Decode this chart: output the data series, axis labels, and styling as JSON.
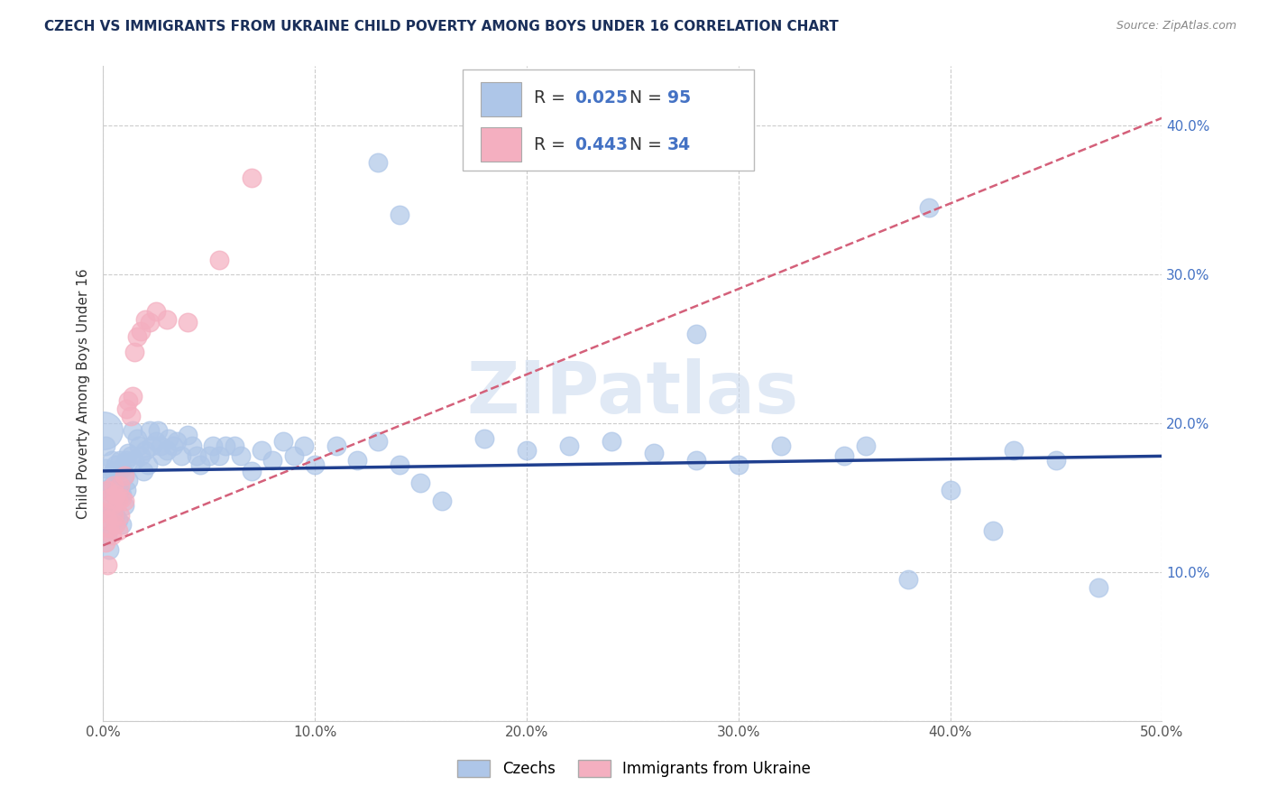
{
  "title": "CZECH VS IMMIGRANTS FROM UKRAINE CHILD POVERTY AMONG BOYS UNDER 16 CORRELATION CHART",
  "source": "Source: ZipAtlas.com",
  "ylabel": "Child Poverty Among Boys Under 16",
  "xlim": [
    0,
    0.5
  ],
  "ylim": [
    0,
    0.44
  ],
  "xtick_vals": [
    0.0,
    0.1,
    0.2,
    0.3,
    0.4,
    0.5
  ],
  "ytick_vals": [
    0.0,
    0.1,
    0.2,
    0.3,
    0.4
  ],
  "xtick_labels": [
    "0.0%",
    "10.0%",
    "20.0%",
    "30.0%",
    "40.0%",
    "50.0%"
  ],
  "ytick_labels": [
    "",
    "10.0%",
    "20.0%",
    "30.0%",
    "40.0%"
  ],
  "watermark": "ZIPatlas",
  "legend_czech": "Czechs",
  "legend_ukraine": "Immigrants from Ukraine",
  "R_czech": "0.025",
  "N_czech": "95",
  "R_ukraine": "0.443",
  "N_ukraine": "34",
  "czech_color": "#aec6e8",
  "ukraine_color": "#f4afc0",
  "czech_line_color": "#1f3f8f",
  "ukraine_line_color": "#d4607a",
  "background_color": "#ffffff",
  "czechs_x": [
    0.001,
    0.001,
    0.002,
    0.002,
    0.002,
    0.003,
    0.003,
    0.003,
    0.003,
    0.004,
    0.004,
    0.004,
    0.005,
    0.005,
    0.005,
    0.006,
    0.006,
    0.006,
    0.007,
    0.007,
    0.007,
    0.008,
    0.008,
    0.009,
    0.009,
    0.009,
    0.01,
    0.01,
    0.011,
    0.011,
    0.012,
    0.012,
    0.013,
    0.014,
    0.015,
    0.016,
    0.017,
    0.018,
    0.019,
    0.02,
    0.021,
    0.022,
    0.023,
    0.025,
    0.026,
    0.027,
    0.028,
    0.03,
    0.031,
    0.033,
    0.035,
    0.037,
    0.04,
    0.042,
    0.044,
    0.046,
    0.05,
    0.052,
    0.055,
    0.058,
    0.062,
    0.065,
    0.07,
    0.075,
    0.08,
    0.085,
    0.09,
    0.095,
    0.1,
    0.11,
    0.12,
    0.13,
    0.14,
    0.15,
    0.16,
    0.18,
    0.2,
    0.22,
    0.24,
    0.26,
    0.28,
    0.3,
    0.32,
    0.35,
    0.38,
    0.4,
    0.42,
    0.43,
    0.45,
    0.47,
    0.13,
    0.14,
    0.28,
    0.39,
    0.36
  ],
  "czechs_y": [
    0.185,
    0.17,
    0.155,
    0.14,
    0.125,
    0.165,
    0.148,
    0.13,
    0.115,
    0.175,
    0.158,
    0.14,
    0.168,
    0.152,
    0.135,
    0.172,
    0.155,
    0.138,
    0.168,
    0.153,
    0.135,
    0.175,
    0.155,
    0.17,
    0.152,
    0.132,
    0.165,
    0.145,
    0.175,
    0.155,
    0.18,
    0.162,
    0.178,
    0.195,
    0.175,
    0.19,
    0.185,
    0.178,
    0.168,
    0.182,
    0.172,
    0.195,
    0.185,
    0.188,
    0.195,
    0.185,
    0.178,
    0.182,
    0.19,
    0.185,
    0.188,
    0.178,
    0.192,
    0.185,
    0.178,
    0.172,
    0.178,
    0.185,
    0.178,
    0.185,
    0.185,
    0.178,
    0.168,
    0.182,
    0.175,
    0.188,
    0.178,
    0.185,
    0.172,
    0.185,
    0.175,
    0.188,
    0.172,
    0.16,
    0.148,
    0.19,
    0.182,
    0.185,
    0.188,
    0.18,
    0.175,
    0.172,
    0.185,
    0.178,
    0.095,
    0.155,
    0.128,
    0.182,
    0.175,
    0.09,
    0.375,
    0.34,
    0.26,
    0.345,
    0.185
  ],
  "ukraine_x": [
    0.001,
    0.001,
    0.002,
    0.002,
    0.002,
    0.003,
    0.003,
    0.004,
    0.004,
    0.005,
    0.005,
    0.006,
    0.006,
    0.007,
    0.007,
    0.008,
    0.008,
    0.009,
    0.01,
    0.01,
    0.011,
    0.012,
    0.013,
    0.014,
    0.015,
    0.016,
    0.018,
    0.02,
    0.022,
    0.025,
    0.03,
    0.04,
    0.055,
    0.07
  ],
  "ukraine_y": [
    0.14,
    0.12,
    0.155,
    0.135,
    0.105,
    0.15,
    0.13,
    0.145,
    0.125,
    0.158,
    0.138,
    0.152,
    0.132,
    0.148,
    0.128,
    0.158,
    0.138,
    0.15,
    0.165,
    0.148,
    0.21,
    0.215,
    0.205,
    0.218,
    0.248,
    0.258,
    0.262,
    0.27,
    0.268,
    0.275,
    0.27,
    0.268,
    0.31,
    0.365
  ],
  "czech_line_x": [
    0.0,
    0.5
  ],
  "czech_line_y": [
    0.168,
    0.178
  ],
  "ukraine_line_x": [
    0.0,
    0.5
  ],
  "ukraine_line_y": [
    0.118,
    0.405
  ]
}
